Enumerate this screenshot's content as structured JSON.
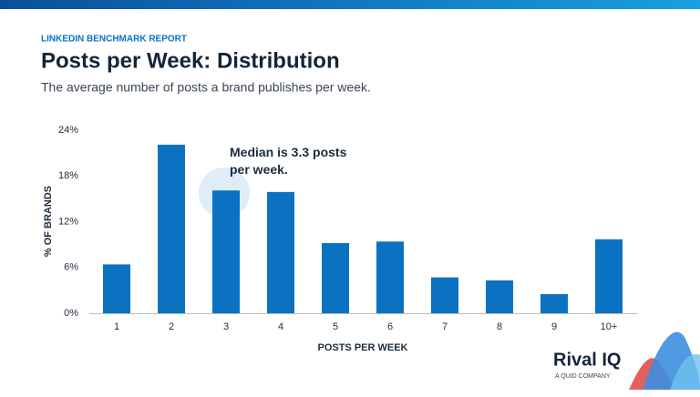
{
  "chart_data": {
    "type": "bar",
    "kicker": "LINKEDIN BENCHMARK REPORT",
    "title": "Posts per Week: Distribution",
    "subtitle": "The average number of posts a brand publishes per week.",
    "annotation": "Median is 3.3 posts per week.",
    "y_label": "% OF BRANDS",
    "x_label": "POSTS PER WEEK",
    "categories": [
      "1",
      "2",
      "3",
      "4",
      "5",
      "6",
      "7",
      "8",
      "9",
      "10+"
    ],
    "values": [
      6.4,
      22.1,
      16.1,
      15.9,
      9.2,
      9.4,
      4.7,
      4.3,
      2.5,
      9.7
    ],
    "color": "#0b72c2",
    "ylim": [
      0,
      24
    ],
    "yticks": [
      {
        "value": 0,
        "label": "0%"
      },
      {
        "value": 6,
        "label": "6%"
      },
      {
        "value": 12,
        "label": "12%"
      },
      {
        "value": 18,
        "label": "18%"
      },
      {
        "value": 24,
        "label": "24%"
      }
    ],
    "grid": false
  },
  "logo": {
    "name": "Rival IQ",
    "tagline": "A QUID COMPANY"
  }
}
